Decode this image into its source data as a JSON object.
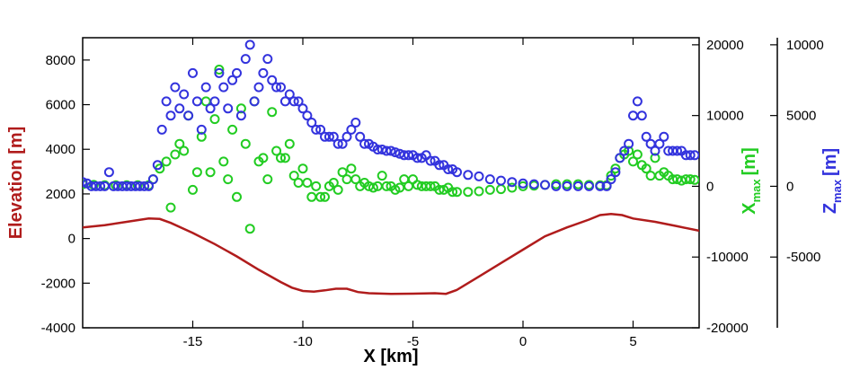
{
  "chart_data": {
    "type": "scatter",
    "x_label": "X [km]",
    "xlim": [
      -20,
      8
    ],
    "x_ticks": [
      -15,
      -10,
      -5,
      0,
      5
    ],
    "axes": {
      "left": {
        "label": "Elevation [m]",
        "color": "#b01c1c",
        "ylim": [
          -4000,
          9000
        ],
        "ticks": [
          -4000,
          -2000,
          0,
          2000,
          4000,
          6000,
          8000
        ]
      },
      "right_inner": {
        "label_main": "X",
        "label_sub": "max",
        "label_unit": "[m]",
        "color": "#22cc22",
        "ylim": [
          -20000,
          21000
        ],
        "ticks": [
          -20000,
          -10000,
          0,
          10000,
          20000
        ]
      },
      "right_outer": {
        "label_main": "Z",
        "label_sub": "max",
        "label_unit": "[m]",
        "color": "#3333dd",
        "ylim": [
          -10000,
          10500
        ],
        "ticks": [
          -5000,
          0,
          5000,
          10000
        ]
      }
    },
    "series": [
      {
        "axis": "left",
        "style": "line",
        "color": "#b01c1c",
        "x": [
          -20,
          -19,
          -18,
          -17,
          -16.5,
          -16,
          -15,
          -14,
          -13,
          -12,
          -11,
          -10.5,
          -10,
          -9.5,
          -9,
          -8.5,
          -8,
          -7.5,
          -7,
          -6,
          -5,
          -4,
          -3.5,
          -3,
          -2,
          -1,
          0,
          1,
          2,
          3,
          3.5,
          4,
          4.5,
          5,
          6,
          7,
          8
        ],
        "y": [
          500,
          600,
          750,
          900,
          880,
          700,
          250,
          -250,
          -800,
          -1400,
          -1950,
          -2200,
          -2350,
          -2380,
          -2320,
          -2250,
          -2250,
          -2400,
          -2450,
          -2480,
          -2470,
          -2450,
          -2480,
          -2300,
          -1700,
          -1100,
          -500,
          100,
          500,
          850,
          1050,
          1100,
          1050,
          900,
          750,
          550,
          350
        ]
      },
      {
        "axis": "right_inner",
        "style": "markers",
        "color": "#22cc22",
        "x": [
          -20,
          -19.5,
          -19,
          -18.5,
          -18,
          -17.5,
          -17,
          -16.8,
          -16.5,
          -16.2,
          -16,
          -15.8,
          -15.6,
          -15.4,
          -15.2,
          -15,
          -14.8,
          -14.6,
          -14.4,
          -14.2,
          -14,
          -13.8,
          -13.6,
          -13.4,
          -13.2,
          -13,
          -12.8,
          -12.6,
          -12.4,
          -12.2,
          -12,
          -11.8,
          -11.6,
          -11.4,
          -11.2,
          -11,
          -10.8,
          -10.6,
          -10.4,
          -10.2,
          -10,
          -9.8,
          -9.6,
          -9.4,
          -9.2,
          -9,
          -8.8,
          -8.6,
          -8.4,
          -8.2,
          -8,
          -7.8,
          -7.6,
          -7.4,
          -7.2,
          -7,
          -6.8,
          -6.6,
          -6.4,
          -6.2,
          -6,
          -5.8,
          -5.6,
          -5.4,
          -5.2,
          -5,
          -4.8,
          -4.6,
          -4.4,
          -4.2,
          -4,
          -3.8,
          -3.6,
          -3.4,
          -3.2,
          -3,
          -2.5,
          -2,
          -1.5,
          -1,
          -0.5,
          0,
          0.5,
          1,
          1.5,
          2,
          2.5,
          3,
          3.5,
          3.8,
          4,
          4.2,
          4.4,
          4.6,
          4.8,
          5,
          5.2,
          5.4,
          5.6,
          5.8,
          6,
          6.2,
          6.4,
          6.6,
          6.8,
          7,
          7.2,
          7.4,
          7.6,
          7.8
        ],
        "y": [
          300,
          200,
          150,
          150,
          150,
          150,
          150,
          1000,
          2500,
          3500,
          -3000,
          4500,
          6000,
          5000,
          10000,
          -500,
          2000,
          7000,
          12000,
          2000,
          9500,
          16500,
          3500,
          1000,
          8000,
          -1500,
          11000,
          6000,
          -6000,
          12000,
          3500,
          4000,
          1000,
          10500,
          5000,
          4000,
          4000,
          6000,
          1500,
          500,
          2500,
          500,
          -1500,
          0,
          -1500,
          -1500,
          0,
          500,
          -500,
          2000,
          1000,
          2500,
          1000,
          0,
          500,
          0,
          -200,
          0,
          1500,
          0,
          0,
          -500,
          -200,
          1000,
          0,
          1000,
          200,
          0,
          0,
          0,
          0,
          -500,
          -500,
          -200,
          -800,
          -800,
          -800,
          -700,
          -500,
          -400,
          -200,
          0,
          100,
          200,
          300,
          300,
          300,
          200,
          150,
          150,
          1500,
          2500,
          4000,
          4500,
          5000,
          3500,
          4500,
          3000,
          2500,
          1500,
          4000,
          1500,
          2000,
          1500,
          1000,
          1000,
          800,
          1000,
          1000,
          900
        ]
      },
      {
        "axis": "right_outer",
        "style": "markers",
        "color": "#3333dd",
        "x": [
          -20,
          -19.8,
          -19.6,
          -19.4,
          -19.2,
          -19,
          -18.8,
          -18.6,
          -18.4,
          -18.2,
          -18,
          -17.8,
          -17.6,
          -17.4,
          -17.2,
          -17,
          -16.8,
          -16.6,
          -16.4,
          -16.2,
          -16,
          -15.8,
          -15.6,
          -15.4,
          -15.2,
          -15,
          -14.8,
          -14.6,
          -14.4,
          -14.2,
          -14,
          -13.8,
          -13.6,
          -13.4,
          -13.2,
          -13,
          -12.8,
          -12.6,
          -12.4,
          -12.2,
          -12,
          -11.8,
          -11.6,
          -11.4,
          -11.2,
          -11,
          -10.8,
          -10.6,
          -10.4,
          -10.2,
          -10,
          -9.8,
          -9.6,
          -9.4,
          -9.2,
          -9,
          -8.8,
          -8.6,
          -8.4,
          -8.2,
          -8,
          -7.8,
          -7.6,
          -7.4,
          -7.2,
          -7,
          -6.8,
          -6.6,
          -6.4,
          -6.2,
          -6,
          -5.8,
          -5.6,
          -5.4,
          -5.2,
          -5,
          -4.8,
          -4.6,
          -4.4,
          -4.2,
          -4,
          -3.8,
          -3.6,
          -3.4,
          -3.2,
          -3,
          -2.5,
          -2,
          -1.5,
          -1,
          -0.5,
          0,
          0.5,
          1,
          1.5,
          2,
          2.5,
          3,
          3.5,
          3.8,
          4,
          4.2,
          4.4,
          4.6,
          4.8,
          5,
          5.2,
          5.4,
          5.6,
          5.8,
          6,
          6.2,
          6.4,
          6.6,
          6.8,
          7,
          7.2,
          7.4,
          7.6,
          7.8
        ],
        "y": [
          300,
          200,
          0,
          0,
          0,
          0,
          1000,
          0,
          0,
          0,
          0,
          0,
          0,
          0,
          0,
          0,
          500,
          1500,
          4000,
          6000,
          5000,
          7000,
          5500,
          6500,
          5000,
          8000,
          6000,
          4000,
          7000,
          5500,
          6000,
          8000,
          7000,
          5500,
          7500,
          8000,
          5000,
          9000,
          10000,
          6000,
          7000,
          8000,
          9000,
          7500,
          7000,
          7000,
          6000,
          6500,
          6000,
          6000,
          5500,
          5000,
          4500,
          4000,
          4000,
          3500,
          3500,
          3500,
          3000,
          3000,
          3500,
          4000,
          4500,
          3500,
          3000,
          3000,
          2800,
          2600,
          2600,
          2500,
          2500,
          2400,
          2300,
          2200,
          2200,
          2200,
          2000,
          2000,
          2200,
          1800,
          1800,
          1500,
          1500,
          1200,
          1200,
          1000,
          800,
          700,
          500,
          400,
          300,
          200,
          150,
          100,
          0,
          0,
          0,
          0,
          0,
          0,
          500,
          1000,
          2000,
          2500,
          3000,
          5000,
          6000,
          5000,
          3500,
          3000,
          2500,
          3000,
          3500,
          2500,
          2500,
          2500,
          2500,
          2200,
          2200,
          2200
        ]
      }
    ]
  }
}
